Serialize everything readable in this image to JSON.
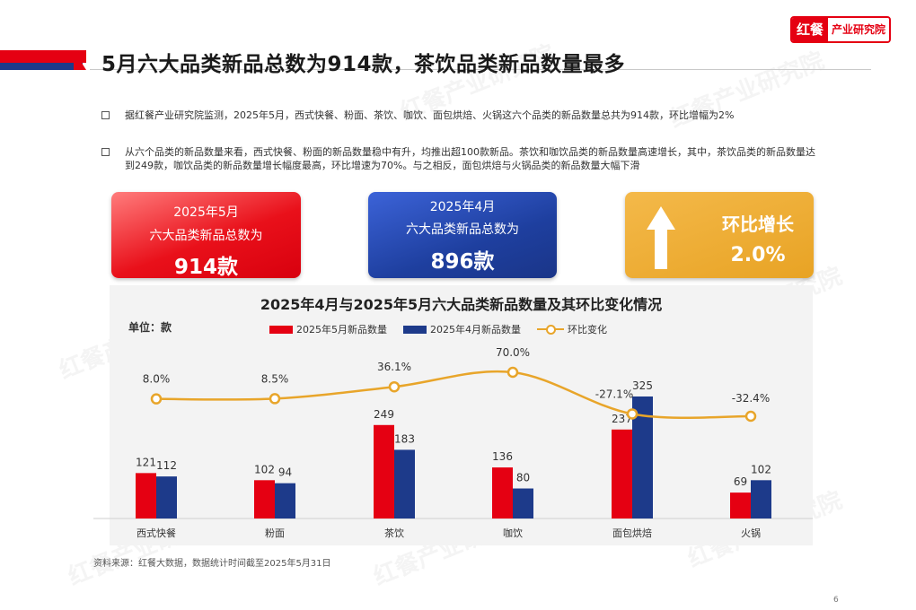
{
  "brand": {
    "logo_main": "红餐",
    "logo_sub": "产业研究院"
  },
  "page_title": "5月六大品类新品总数为914款，茶饮品类新品数量最多",
  "bullets": [
    "据红餐产业研究院监测，2025年5月，西式快餐、粉面、茶饮、咖饮、面包烘焙、火锅这六个品类的新品数量总共为914款，环比增幅为2%",
    "从六个品类的新品数量来看，西式快餐、粉面的新品数量稳中有升，均推出超100款新品。茶饮和咖饮品类的新品数量高速增长，其中，茶饮品类的新品数量达到249款，咖饮品类的新品数量增长幅度最高，环比增速为70%。与之相反，面包烘焙与火锅品类的新品数量大幅下滑"
  ],
  "cards": {
    "may": {
      "line1": "2025年5月",
      "line2": "六大品类新品总数为",
      "value": "914款"
    },
    "april": {
      "line1": "2025年4月",
      "line2": "六大品类新品总数为",
      "value": "896款"
    },
    "growth": {
      "label": "环比增长",
      "value": "2.0%",
      "icon": "up-arrow-icon"
    }
  },
  "chart_data": {
    "type": "bar",
    "title": "2025年4月与2025年5月六大品类新品数量及其环比变化情况",
    "unit_label": "单位：款",
    "categories": [
      "西式快餐",
      "粉面",
      "茶饮",
      "咖饮",
      "面包烘焙",
      "火锅"
    ],
    "series": [
      {
        "name": "2025年5月新品数量",
        "type": "bar",
        "color": "#e50012",
        "values": [
          121,
          102,
          249,
          136,
          237,
          69
        ]
      },
      {
        "name": "2025年4月新品数量",
        "type": "bar",
        "color": "#1d3a8a",
        "values": [
          112,
          94,
          183,
          80,
          325,
          102
        ]
      },
      {
        "name": "环比变化",
        "type": "line",
        "color": "#e8a52a",
        "values": [
          8.0,
          8.5,
          36.1,
          70.0,
          -27.1,
          -32.4
        ],
        "labels": [
          "8.0%",
          "8.5%",
          "36.1%",
          "70.0%",
          "-27.1%",
          "-32.4%"
        ]
      }
    ],
    "legend_position": "top-center",
    "grid": false
  },
  "source": "资料来源：红餐大数据，数据统计时间截至2025年5月31日",
  "page_number": "6",
  "watermark": "红餐产业研究院"
}
